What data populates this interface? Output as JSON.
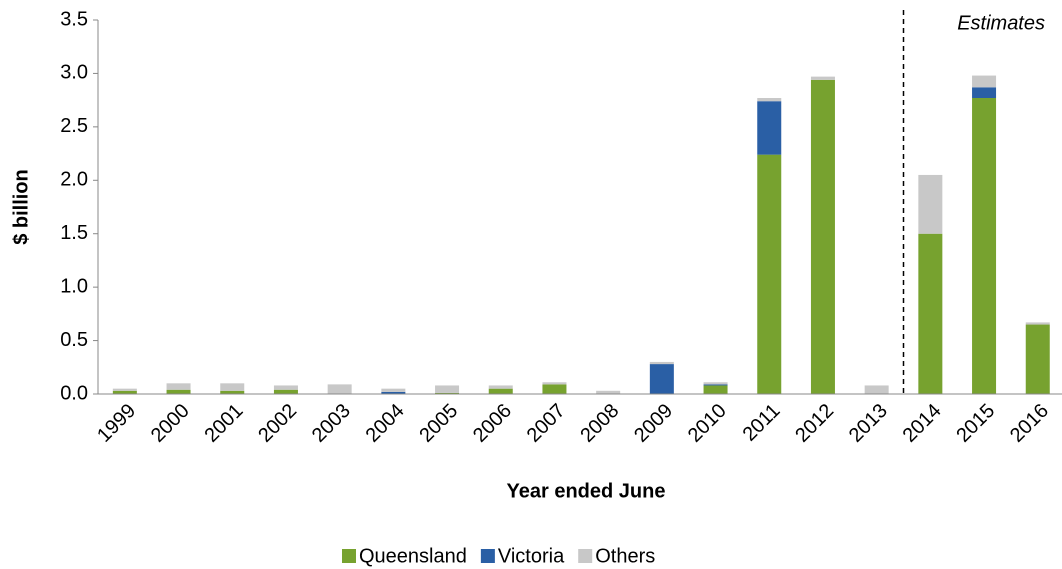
{
  "chart_data": {
    "type": "bar",
    "stacked": true,
    "y_label": "$ billion",
    "x_label": "Year ended June",
    "annotation": "Estimates",
    "categories": [
      "1999",
      "2000",
      "2001",
      "2002",
      "2003",
      "2004",
      "2005",
      "2006",
      "2007",
      "2008",
      "2009",
      "2010",
      "2011",
      "2012",
      "2013",
      "2014",
      "2015",
      "2016"
    ],
    "series": [
      {
        "name": "Queensland",
        "color": "#77a22f",
        "values": [
          0.03,
          0.04,
          0.03,
          0.04,
          0,
          0,
          0.01,
          0.05,
          0.09,
          0,
          0,
          0.08,
          2.24,
          2.94,
          0,
          1.5,
          2.77,
          0.65
        ]
      },
      {
        "name": "Victoria",
        "color": "#2a5fa5",
        "values": [
          0,
          0,
          0,
          0,
          0,
          0.02,
          0,
          0,
          0,
          0,
          0.28,
          0.01,
          0.5,
          0,
          0,
          0,
          0.1,
          0
        ]
      },
      {
        "name": "Others",
        "color": "#c8c8c8",
        "values": [
          0.02,
          0.06,
          0.07,
          0.04,
          0.09,
          0.03,
          0.07,
          0.03,
          0.02,
          0.03,
          0.02,
          0.02,
          0.03,
          0.03,
          0.08,
          0.55,
          0.11,
          0.02
        ]
      }
    ],
    "ylim": [
      0,
      3.5
    ],
    "yticks": [
      {
        "value": 0,
        "label": "0.0"
      },
      0.5,
      {
        "value": 1,
        "label": "1.0"
      },
      1.5,
      {
        "value": 2,
        "label": "2.0"
      },
      2.5,
      {
        "value": 3,
        "label": "3.0"
      },
      3.5
    ],
    "grid": false,
    "legend": "bottom"
  }
}
